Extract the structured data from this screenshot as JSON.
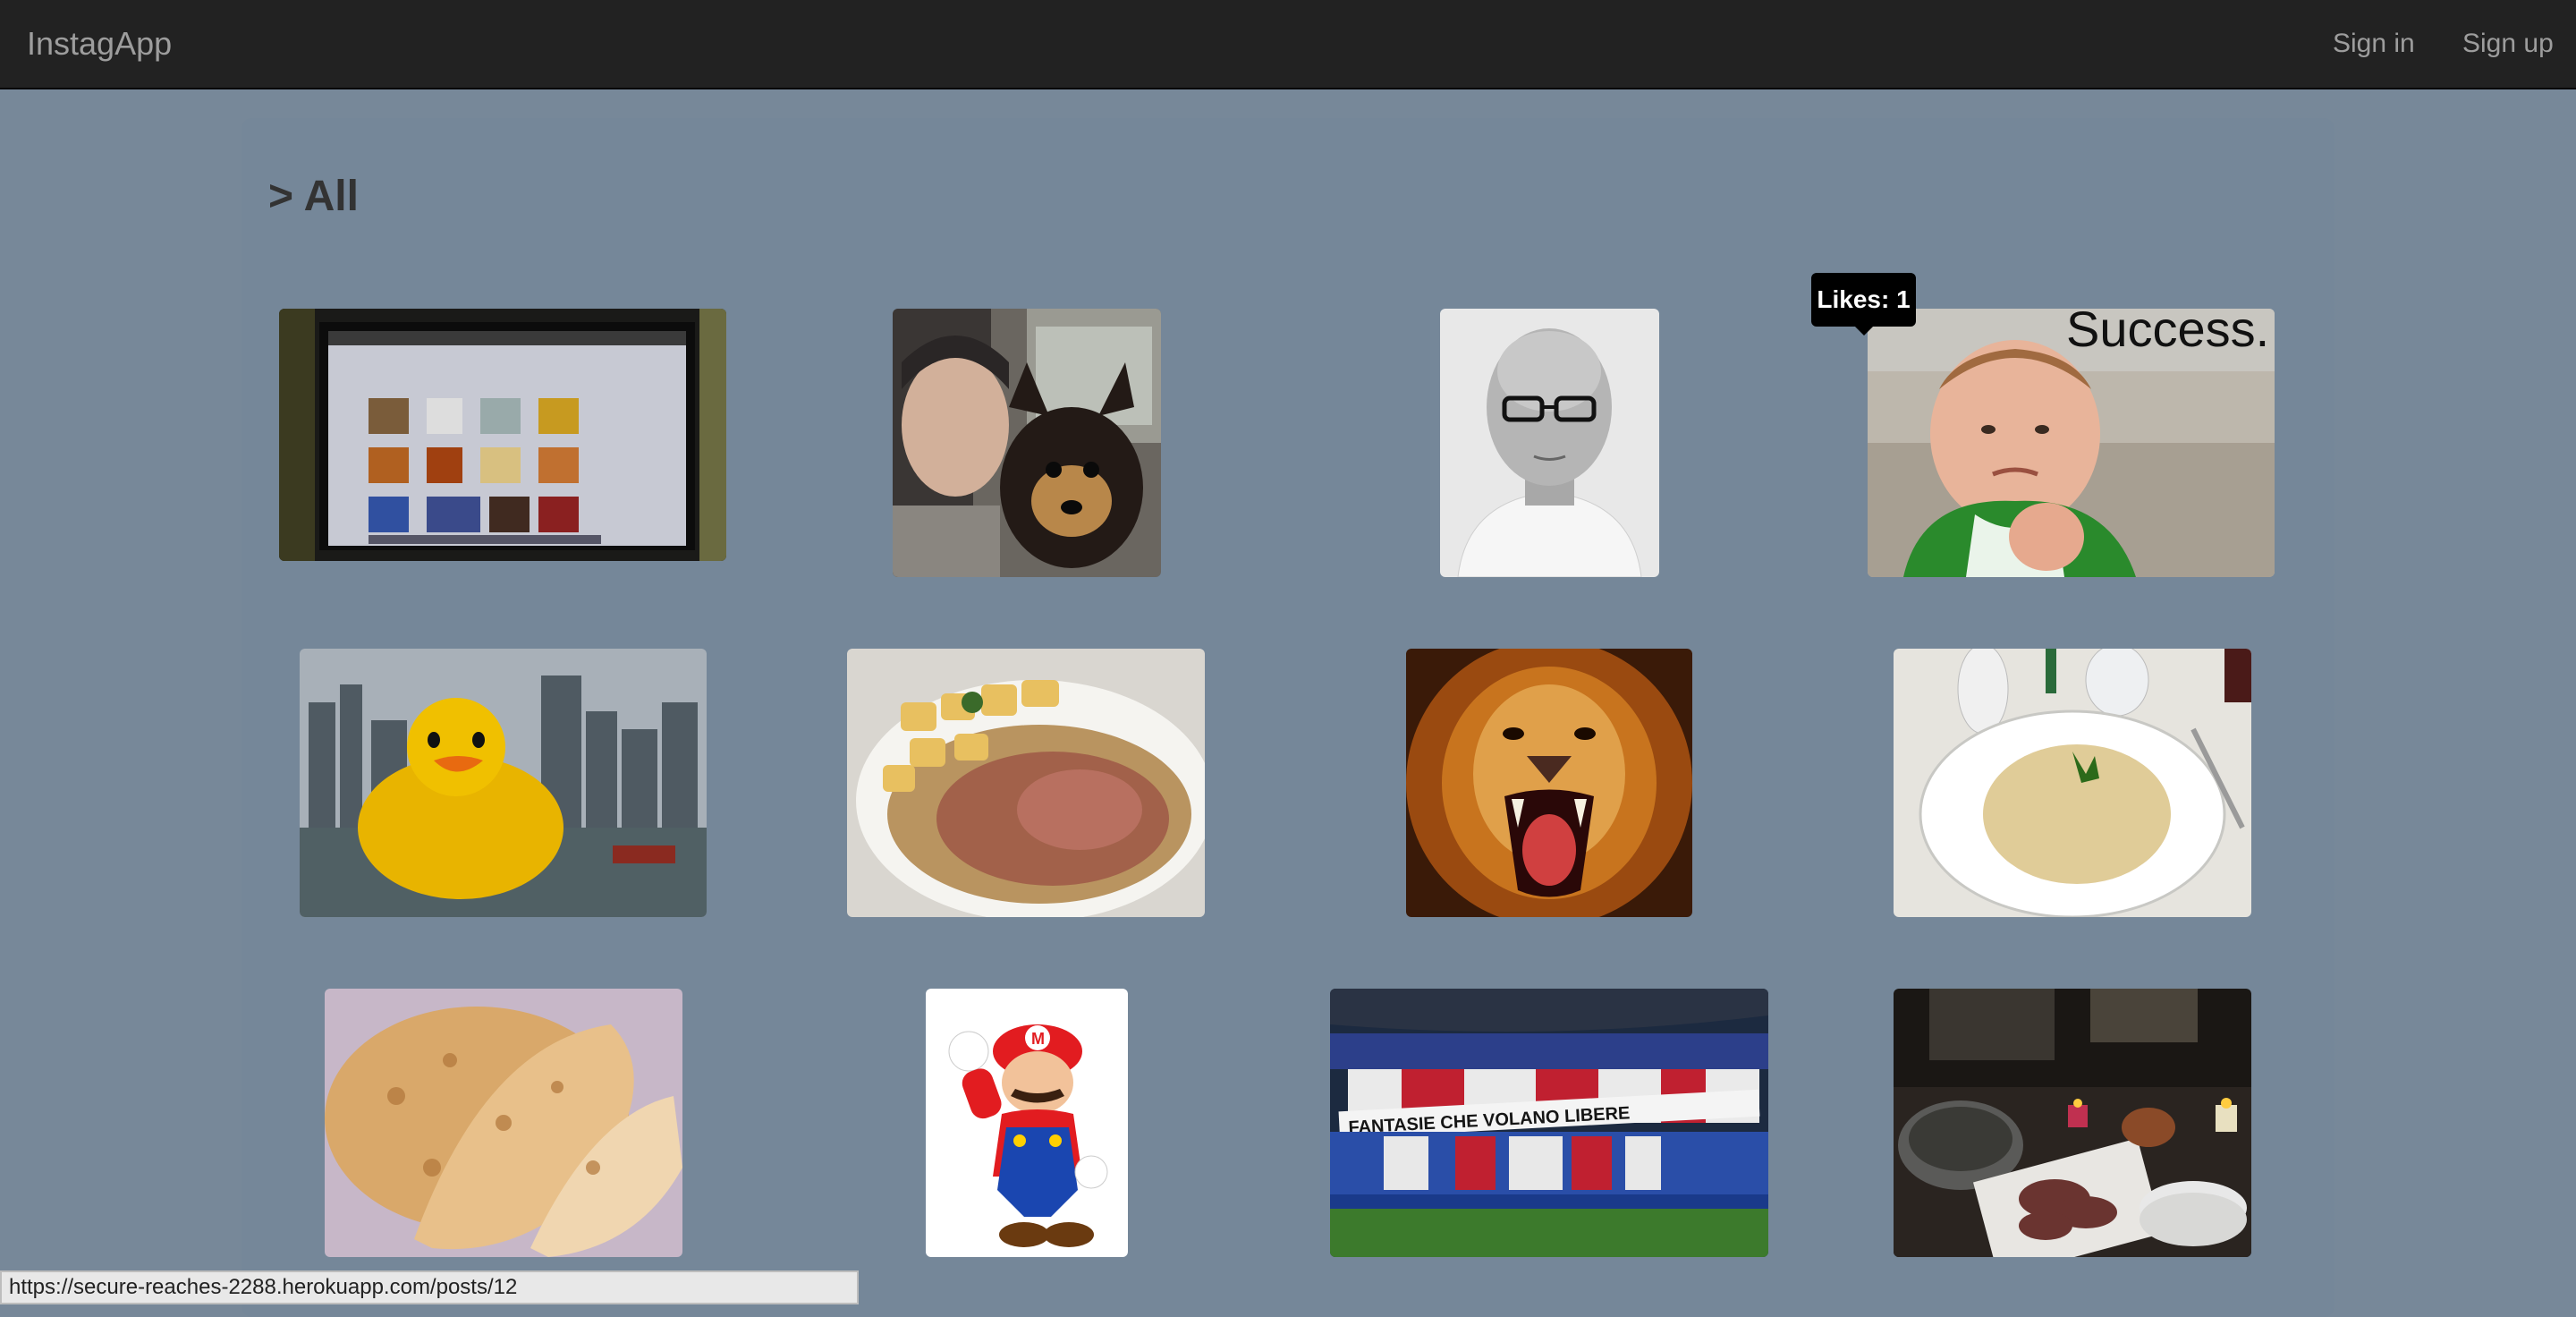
{
  "nav": {
    "brand": "InstagApp",
    "sign_in": "Sign in",
    "sign_up": "Sign up"
  },
  "page": {
    "heading": "> All"
  },
  "tooltip": {
    "text": "Likes: 1"
  },
  "photos": [
    {
      "subject": "laptop-screen-photo"
    },
    {
      "subject": "man-with-dog-photo"
    },
    {
      "subject": "bald-man-glasses-photo"
    },
    {
      "subject": "success-kid-meme",
      "caption": "Success."
    },
    {
      "subject": "giant-rubber-duck-photo"
    },
    {
      "subject": "meat-potatoes-dish-photo"
    },
    {
      "subject": "roaring-lion-photo"
    },
    {
      "subject": "risotto-plate-photo"
    },
    {
      "subject": "flatbread-photo"
    },
    {
      "subject": "mario-character-image"
    },
    {
      "subject": "stadium-crowd-photo",
      "banner": "FANTASIE CHE VOLANO LIBERE"
    },
    {
      "subject": "dinner-table-photo"
    }
  ],
  "statusbar": {
    "url": "https://secure-reaches-2288.herokuapp.com/posts/12"
  },
  "colors": {
    "background": "#778899",
    "navbar": "#222222",
    "nav_text": "#9d9d9d",
    "heading": "#333333",
    "tooltip": "#000000"
  }
}
